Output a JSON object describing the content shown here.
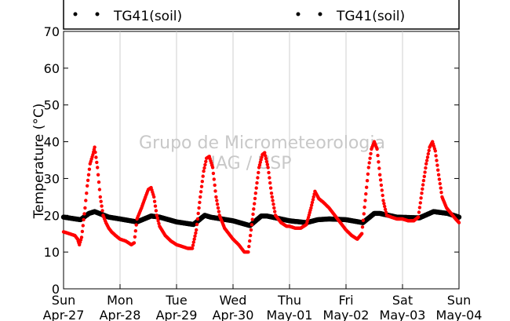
{
  "chart_data": {
    "type": "scatter",
    "ylabel": "Temperature (°C)",
    "ylim": [
      0,
      70
    ],
    "y_ticks": [
      0,
      10,
      20,
      30,
      40,
      50,
      60,
      70
    ],
    "x_days": [
      {
        "day": "Sun",
        "date": "Apr-27"
      },
      {
        "day": "Mon",
        "date": "Apr-28"
      },
      {
        "day": "Tue",
        "date": "Apr-29"
      },
      {
        "day": "Wed",
        "date": "Apr-30"
      },
      {
        "day": "Thu",
        "date": "May-01"
      },
      {
        "day": "Fri",
        "date": "May-02"
      },
      {
        "day": "Sat",
        "date": "May-03"
      },
      {
        "day": "Sun",
        "date": "May-04"
      }
    ],
    "x_unit": "days since Apr-27 00:00",
    "grid": "vertical",
    "legend": {
      "left": "TG41(soil)",
      "right": "TG41(soil)",
      "placement": "top"
    },
    "watermark": [
      "Grupo de Micrometeorologia",
      "IAG / USP"
    ],
    "series": [
      {
        "name": "TG41(soil)",
        "color": "#ff0000",
        "points": [
          [
            0.0,
            15.5
          ],
          [
            0.1,
            15.0
          ],
          [
            0.2,
            14.5
          ],
          [
            0.25,
            13.5
          ],
          [
            0.28,
            12.0
          ],
          [
            0.32,
            14.0
          ],
          [
            0.38,
            22.0
          ],
          [
            0.42,
            28.0
          ],
          [
            0.47,
            34.0
          ],
          [
            0.52,
            36.5
          ],
          [
            0.55,
            38.5
          ],
          [
            0.6,
            33.0
          ],
          [
            0.65,
            25.0
          ],
          [
            0.7,
            20.0
          ],
          [
            0.75,
            18.0
          ],
          [
            0.8,
            16.5
          ],
          [
            0.85,
            15.5
          ],
          [
            0.92,
            14.5
          ],
          [
            1.0,
            13.5
          ],
          [
            1.1,
            13.0
          ],
          [
            1.2,
            12.0
          ],
          [
            1.25,
            12.5
          ],
          [
            1.3,
            19.0
          ],
          [
            1.38,
            22.0
          ],
          [
            1.45,
            25.0
          ],
          [
            1.5,
            27.0
          ],
          [
            1.55,
            27.5
          ],
          [
            1.6,
            25.0
          ],
          [
            1.65,
            20.0
          ],
          [
            1.7,
            17.0
          ],
          [
            1.8,
            14.5
          ],
          [
            1.9,
            13.0
          ],
          [
            2.0,
            12.0
          ],
          [
            2.1,
            11.5
          ],
          [
            2.2,
            11.0
          ],
          [
            2.28,
            11.0
          ],
          [
            2.35,
            16.0
          ],
          [
            2.42,
            25.0
          ],
          [
            2.48,
            32.0
          ],
          [
            2.53,
            35.5
          ],
          [
            2.58,
            36.0
          ],
          [
            2.64,
            33.0
          ],
          [
            2.7,
            25.0
          ],
          [
            2.76,
            20.0
          ],
          [
            2.85,
            16.5
          ],
          [
            2.95,
            14.5
          ],
          [
            3.0,
            13.5
          ],
          [
            3.1,
            12.0
          ],
          [
            3.2,
            10.0
          ],
          [
            3.27,
            10.0
          ],
          [
            3.32,
            16.0
          ],
          [
            3.4,
            26.0
          ],
          [
            3.46,
            33.0
          ],
          [
            3.52,
            36.5
          ],
          [
            3.56,
            37.0
          ],
          [
            3.62,
            33.0
          ],
          [
            3.68,
            26.0
          ],
          [
            3.75,
            20.0
          ],
          [
            3.85,
            18.0
          ],
          [
            3.95,
            17.0
          ],
          [
            4.0,
            17.0
          ],
          [
            4.1,
            16.5
          ],
          [
            4.2,
            16.5
          ],
          [
            4.3,
            17.5
          ],
          [
            4.38,
            22.0
          ],
          [
            4.45,
            26.5
          ],
          [
            4.52,
            24.5
          ],
          [
            4.6,
            23.5
          ],
          [
            4.7,
            22.0
          ],
          [
            4.8,
            20.0
          ],
          [
            4.9,
            18.0
          ],
          [
            5.0,
            16.0
          ],
          [
            5.1,
            14.5
          ],
          [
            5.2,
            13.5
          ],
          [
            5.28,
            15.0
          ],
          [
            5.34,
            24.0
          ],
          [
            5.4,
            33.0
          ],
          [
            5.45,
            38.0
          ],
          [
            5.5,
            40.0
          ],
          [
            5.55,
            38.0
          ],
          [
            5.6,
            31.0
          ],
          [
            5.66,
            24.0
          ],
          [
            5.72,
            20.0
          ],
          [
            5.8,
            19.5
          ],
          [
            5.9,
            19.0
          ],
          [
            6.0,
            19.0
          ],
          [
            6.1,
            18.5
          ],
          [
            6.2,
            18.5
          ],
          [
            6.28,
            19.5
          ],
          [
            6.34,
            26.0
          ],
          [
            6.42,
            34.0
          ],
          [
            6.48,
            38.5
          ],
          [
            6.53,
            40.0
          ],
          [
            6.58,
            37.5
          ],
          [
            6.64,
            31.0
          ],
          [
            6.7,
            25.0
          ],
          [
            6.78,
            22.0
          ],
          [
            6.86,
            20.5
          ],
          [
            6.94,
            19.0
          ],
          [
            7.0,
            18.0
          ]
        ]
      },
      {
        "name": "TG41(soil)",
        "color": "#000000",
        "points": [
          [
            0.0,
            19.5
          ],
          [
            0.3,
            18.8
          ],
          [
            0.45,
            20.5
          ],
          [
            0.55,
            21.0
          ],
          [
            0.8,
            19.5
          ],
          [
            1.0,
            19.0
          ],
          [
            1.3,
            18.2
          ],
          [
            1.55,
            19.8
          ],
          [
            1.7,
            19.5
          ],
          [
            2.0,
            18.2
          ],
          [
            2.3,
            17.5
          ],
          [
            2.5,
            20.0
          ],
          [
            2.6,
            19.5
          ],
          [
            3.0,
            18.5
          ],
          [
            3.3,
            17.2
          ],
          [
            3.5,
            19.8
          ],
          [
            3.6,
            19.8
          ],
          [
            4.0,
            18.5
          ],
          [
            4.3,
            18.0
          ],
          [
            4.5,
            18.8
          ],
          [
            4.7,
            19.0
          ],
          [
            5.0,
            18.8
          ],
          [
            5.3,
            18.0
          ],
          [
            5.5,
            20.5
          ],
          [
            5.6,
            20.5
          ],
          [
            5.9,
            19.5
          ],
          [
            6.3,
            19.3
          ],
          [
            6.55,
            21.0
          ],
          [
            6.8,
            20.5
          ],
          [
            7.0,
            19.5
          ]
        ]
      }
    ]
  }
}
